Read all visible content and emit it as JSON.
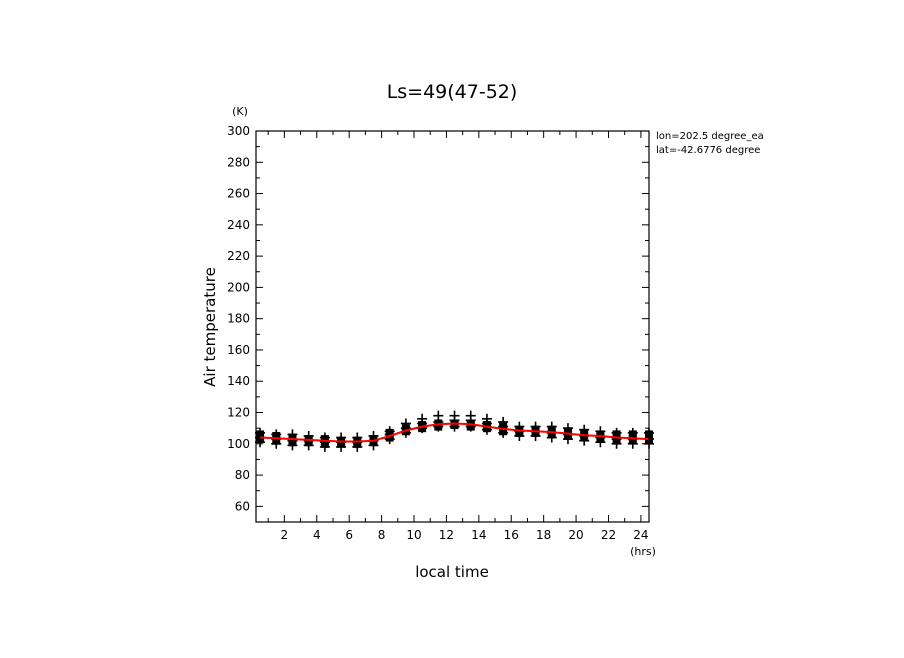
{
  "chart_data": {
    "type": "scatter",
    "title": "Ls=49(47-52)",
    "xlabel": "local time",
    "ylabel": "Air temperature",
    "x_unit": "(hrs)",
    "y_unit": "(K)",
    "xlim": [
      0.25,
      24.5
    ],
    "ylim": [
      50,
      300
    ],
    "x_ticks": [
      2,
      4,
      6,
      8,
      10,
      12,
      14,
      16,
      18,
      20,
      22,
      24
    ],
    "y_ticks": [
      60,
      80,
      100,
      120,
      140,
      160,
      180,
      200,
      220,
      240,
      260,
      280,
      300
    ],
    "annotations": [
      "lon=202.5 degree_ea",
      "lat=-42.6776 degree"
    ],
    "grid": false,
    "series": [
      {
        "marker": "+",
        "color": "#000000",
        "x": [
          0.5,
          1.5,
          2.5,
          3.5,
          4.5,
          5.5,
          6.5,
          7.5,
          8.5,
          9.5,
          10.5,
          11.5,
          12.5,
          13.5,
          14.5,
          15.5,
          16.5,
          17.5,
          18.5,
          19.5,
          20.5,
          21.5,
          22.5,
          23.5,
          24.5
        ],
        "y_points": [
          [
            101,
            104,
            107
          ],
          [
            100,
            103,
            106
          ],
          [
            99,
            102,
            106
          ],
          [
            99,
            102,
            105
          ],
          [
            98,
            101,
            104
          ],
          [
            98,
            101,
            104
          ],
          [
            98,
            101,
            104
          ],
          [
            99,
            102,
            105
          ],
          [
            103,
            106,
            108
          ],
          [
            107,
            110,
            113
          ],
          [
            110,
            113,
            116
          ],
          [
            111,
            114,
            118
          ],
          [
            111,
            115,
            118
          ],
          [
            111,
            115,
            118
          ],
          [
            109,
            113,
            116
          ],
          [
            107,
            111,
            114
          ],
          [
            105,
            108,
            111
          ],
          [
            105,
            108,
            111
          ],
          [
            104,
            107,
            111
          ],
          [
            103,
            106,
            110
          ],
          [
            102,
            105,
            109
          ],
          [
            101,
            104,
            108
          ],
          [
            100,
            103,
            107
          ],
          [
            100,
            103,
            107
          ],
          [
            100,
            103,
            107
          ]
        ]
      },
      {
        "marker": "square",
        "color": "#000000",
        "x": [
          0.5,
          1.5,
          2.5,
          3.5,
          4.5,
          5.5,
          6.5,
          7.5,
          8.5,
          9.5,
          10.5,
          11.5,
          12.5,
          13.5,
          14.5,
          15.5,
          16.5,
          17.5,
          18.5,
          19.5,
          20.5,
          21.5,
          22.5,
          23.5,
          24.5
        ],
        "y_points": [
          [
            103,
            106
          ],
          [
            102,
            105
          ],
          [
            101,
            104
          ],
          [
            101,
            103
          ],
          [
            100,
            103
          ],
          [
            100,
            102
          ],
          [
            100,
            102
          ],
          [
            101,
            103
          ],
          [
            104,
            107
          ],
          [
            108,
            110
          ],
          [
            110,
            112
          ],
          [
            111,
            113
          ],
          [
            112,
            113
          ],
          [
            111,
            113
          ],
          [
            110,
            112
          ],
          [
            108,
            111
          ],
          [
            107,
            109
          ],
          [
            107,
            109
          ],
          [
            106,
            109
          ],
          [
            105,
            108
          ],
          [
            104,
            107
          ],
          [
            104,
            106
          ],
          [
            103,
            106
          ],
          [
            103,
            106
          ],
          [
            103,
            106
          ]
        ]
      },
      {
        "marker": "line",
        "color": "#ff0000",
        "x": [
          0.5,
          1.5,
          2.5,
          3.5,
          4.5,
          5.5,
          6.5,
          7.5,
          8.5,
          9.5,
          10.5,
          11.5,
          12.5,
          13.5,
          14.5,
          15.5,
          16.5,
          17.5,
          18.5,
          19.5,
          20.5,
          21.5,
          22.5,
          23.5,
          24.5
        ],
        "values": [
          104,
          103.5,
          103,
          102.5,
          102,
          101.5,
          101.5,
          102,
          105,
          108.5,
          111,
          112.5,
          113,
          112.5,
          111,
          109.5,
          108.5,
          108,
          107.5,
          106.5,
          105.5,
          105,
          104,
          103.5,
          103
        ]
      }
    ]
  }
}
